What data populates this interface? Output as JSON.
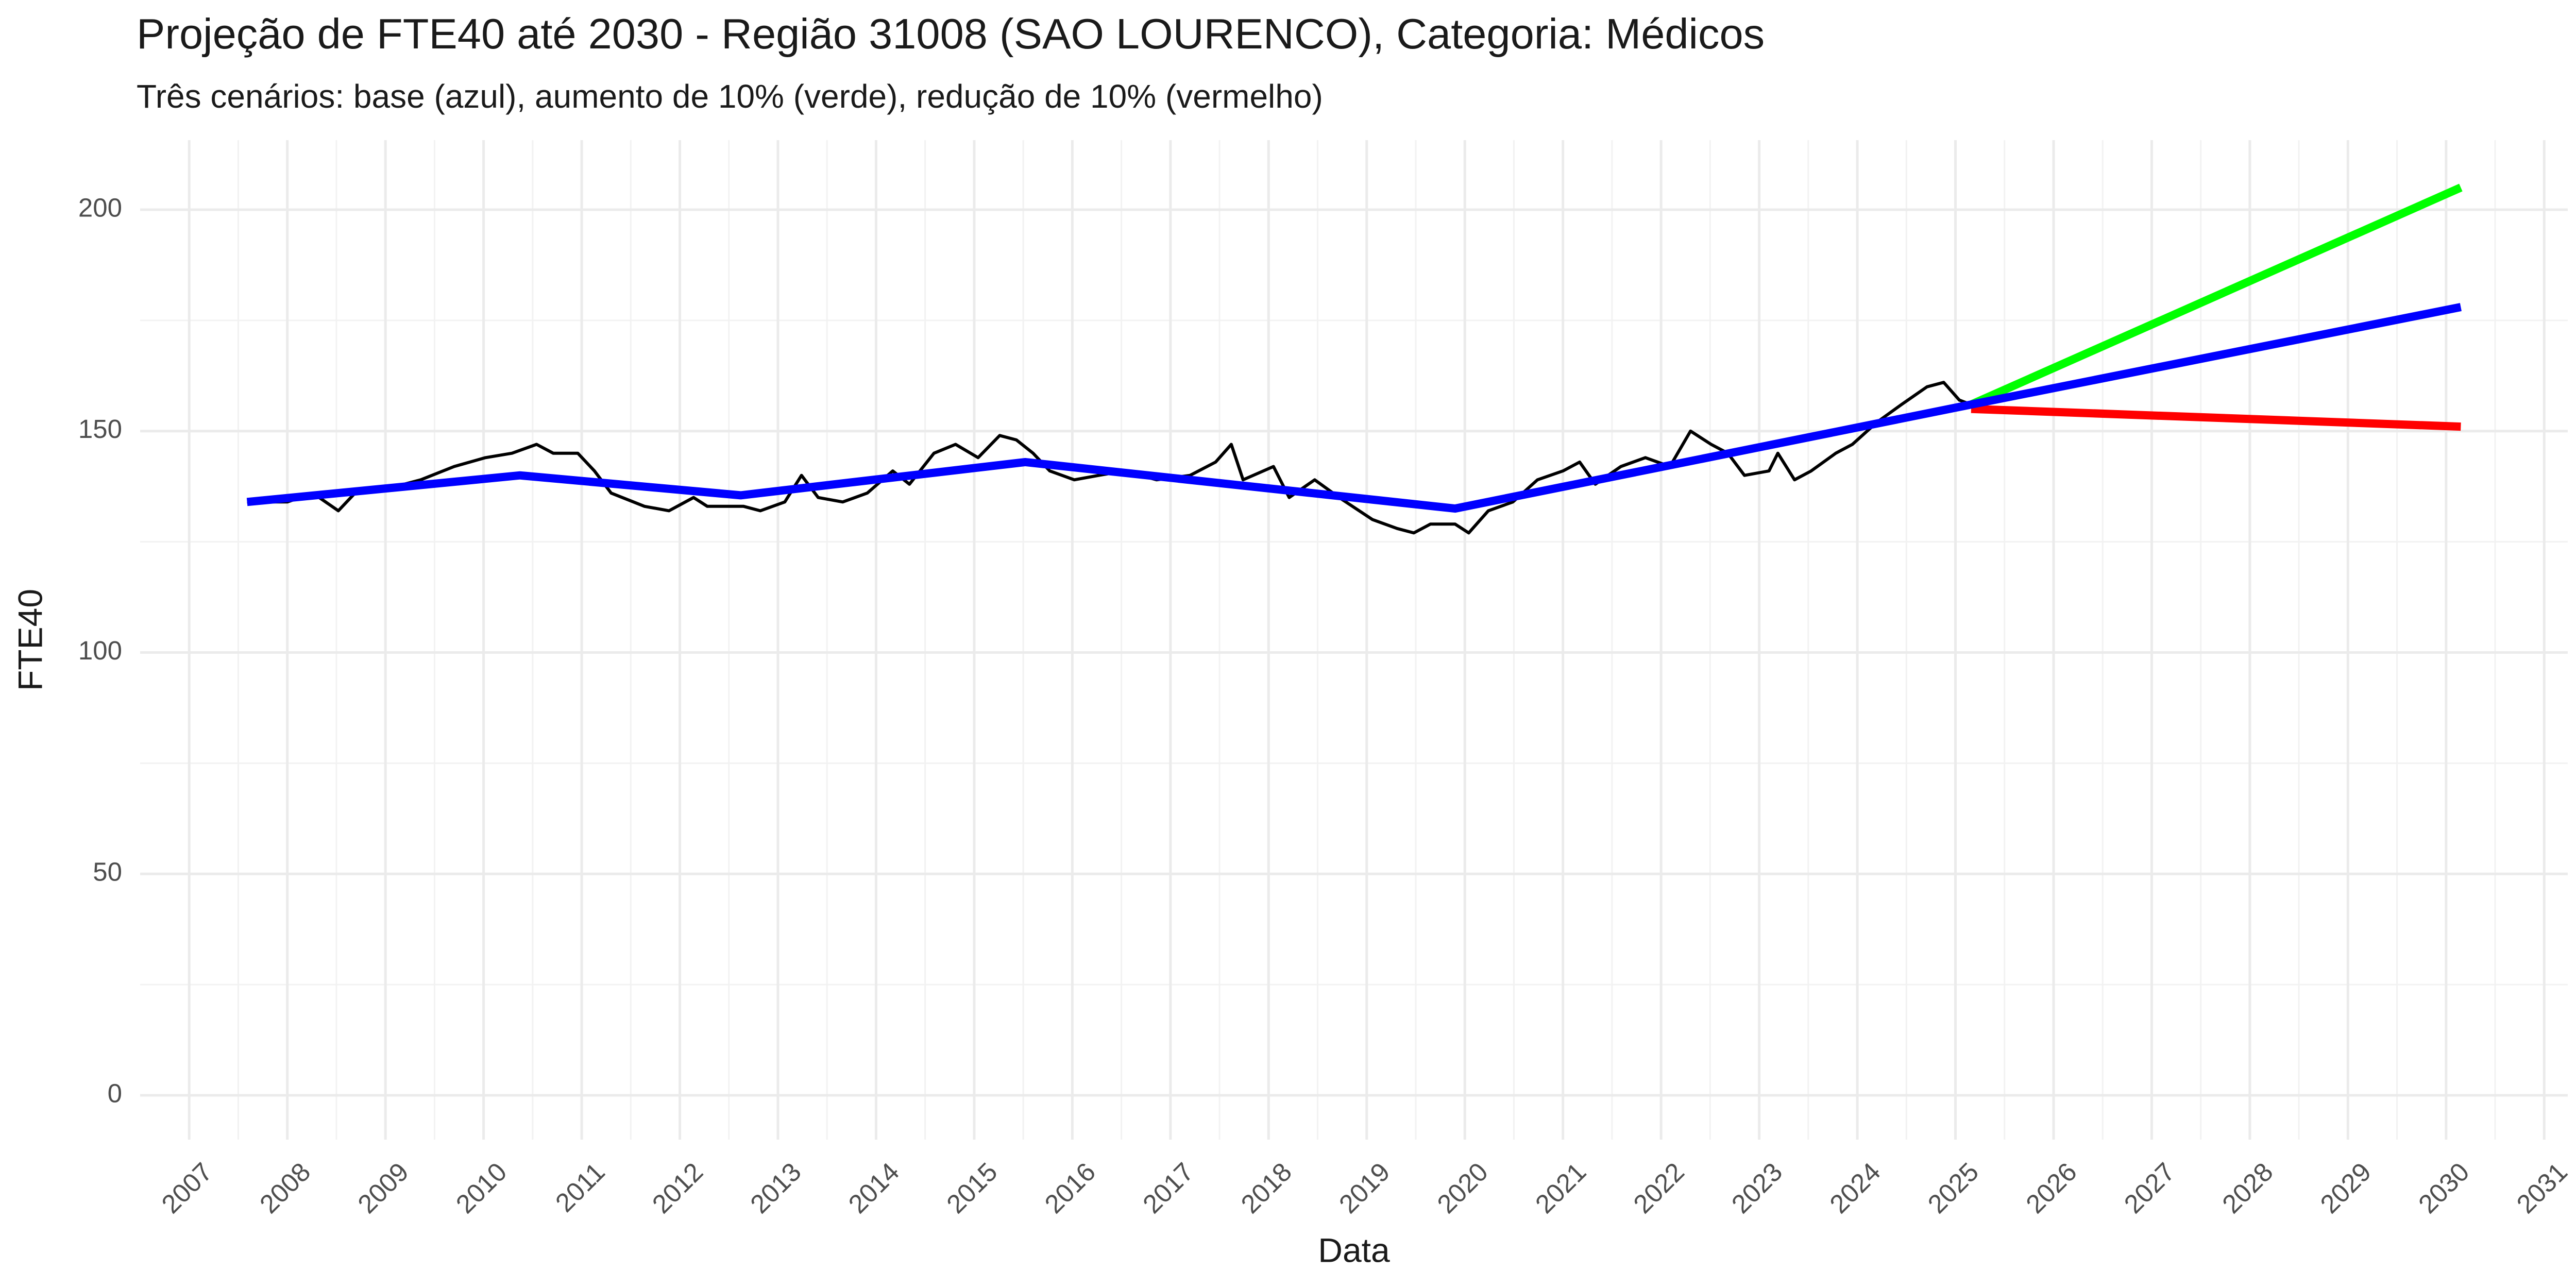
{
  "chart_data": {
    "type": "line",
    "title": "Projeção de FTE40 até 2030 - Região 31008 (SAO LOURENCO), Categoria: Médicos",
    "subtitle": "Três cenários: base (azul), aumento de 10% (verde), redução de 10% (vermelho)",
    "x_label": "Data",
    "y_label": "FTE40",
    "xlim": [
      2006.5,
      2031.24
    ],
    "ylim": [
      -10,
      215.7
    ],
    "xticks": [
      2007,
      2008,
      2009,
      2010,
      2011,
      2012,
      2013,
      2014,
      2015,
      2016,
      2017,
      2018,
      2019,
      2020,
      2021,
      2022,
      2023,
      2024,
      2025,
      2026,
      2027,
      2028,
      2029,
      2030,
      2031
    ],
    "yticks": [
      0,
      50,
      100,
      150,
      200
    ],
    "grid": true,
    "series": [
      {
        "color": "#000000",
        "width": 6,
        "x": [
          2007.59,
          2008.0,
          2008.26,
          2008.52,
          2008.69,
          2009.02,
          2009.36,
          2009.7,
          2010.02,
          2010.29,
          2010.54,
          2010.71,
          2010.96,
          2011.13,
          2011.3,
          2011.64,
          2011.89,
          2012.14,
          2012.28,
          2012.65,
          2012.82,
          2013.07,
          2013.24,
          2013.41,
          2013.66,
          2013.91,
          2014.17,
          2014.34,
          2014.59,
          2014.81,
          2015.04,
          2015.26,
          2015.43,
          2015.6,
          2015.77,
          2016.02,
          2016.27,
          2016.53,
          2016.86,
          2017.2,
          2017.46,
          2017.62,
          2017.74,
          2018.05,
          2018.21,
          2018.47,
          2018.72,
          2019.06,
          2019.31,
          2019.48,
          2019.65,
          2019.9,
          2020.04,
          2020.24,
          2020.49,
          2020.74,
          2021.0,
          2021.17,
          2021.33,
          2021.59,
          2021.84,
          2022.09,
          2022.3,
          2022.51,
          2022.68,
          2022.85,
          2023.1,
          2023.19,
          2023.36,
          2023.53,
          2023.78,
          2023.95,
          2024.2,
          2024.45,
          2024.71,
          2024.88,
          2025.04,
          2025.16
        ],
        "values": [
          134,
          134,
          136,
          132,
          136,
          137,
          139,
          142,
          144,
          145,
          147,
          145,
          145,
          141,
          136,
          133,
          132,
          135,
          133,
          133,
          132,
          134,
          140,
          135,
          134,
          136,
          141,
          138,
          145,
          147,
          144,
          149,
          148,
          145,
          141,
          139,
          140,
          141,
          139,
          140,
          143,
          147,
          139,
          142,
          135,
          139,
          135,
          130,
          128,
          127,
          129,
          129,
          127,
          132,
          134,
          139,
          141,
          143,
          138,
          142,
          144,
          142,
          150,
          147,
          145,
          140,
          141,
          145,
          139,
          141,
          145,
          147,
          152,
          156,
          160,
          161,
          157,
          156
        ]
      },
      {
        "color": "#00ff00",
        "width": 16,
        "x": [
          2025.16,
          2030.15
        ],
        "values": [
          156,
          205
        ]
      },
      {
        "color": "#ff0000",
        "width": 16,
        "x": [
          2025.16,
          2030.15
        ],
        "values": [
          155,
          151
        ]
      },
      {
        "color": "#0000ff",
        "width": 16,
        "x": [
          2007.59,
          2010.37,
          2012.62,
          2015.52,
          2019.9,
          2025.16,
          2030.15
        ],
        "values": [
          134,
          140,
          135.5,
          143,
          132.5,
          156,
          178
        ]
      }
    ]
  }
}
